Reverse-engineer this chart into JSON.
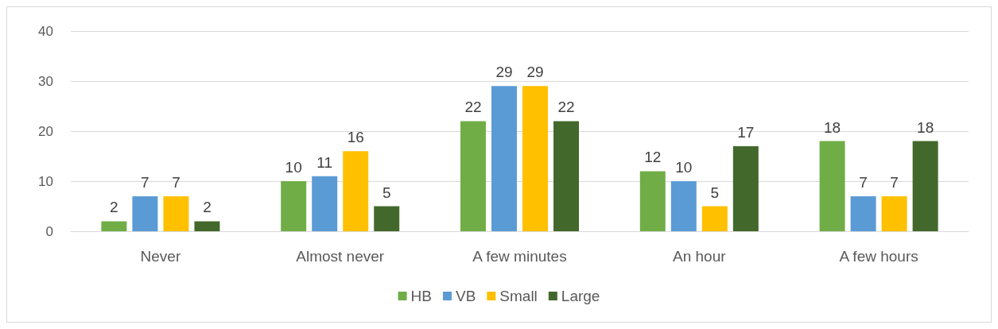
{
  "chart_data": {
    "type": "bar",
    "categories": [
      "Never",
      "Almost never",
      "A few minutes",
      "An hour",
      "A few hours"
    ],
    "series": [
      {
        "name": "HB",
        "color": "#70ad47",
        "values": [
          2,
          10,
          22,
          12,
          18
        ]
      },
      {
        "name": "VB",
        "color": "#5b9bd5",
        "values": [
          7,
          11,
          29,
          10,
          7
        ]
      },
      {
        "name": "Small",
        "color": "#ffc000",
        "values": [
          7,
          16,
          29,
          5,
          7
        ]
      },
      {
        "name": "Large",
        "color": "#43682b",
        "values": [
          2,
          5,
          22,
          17,
          18
        ]
      }
    ],
    "ylim": [
      0,
      40
    ],
    "yticks": [
      0,
      10,
      20,
      30,
      40
    ],
    "grid": "y",
    "legend": "bottom",
    "data_labels": true
  }
}
